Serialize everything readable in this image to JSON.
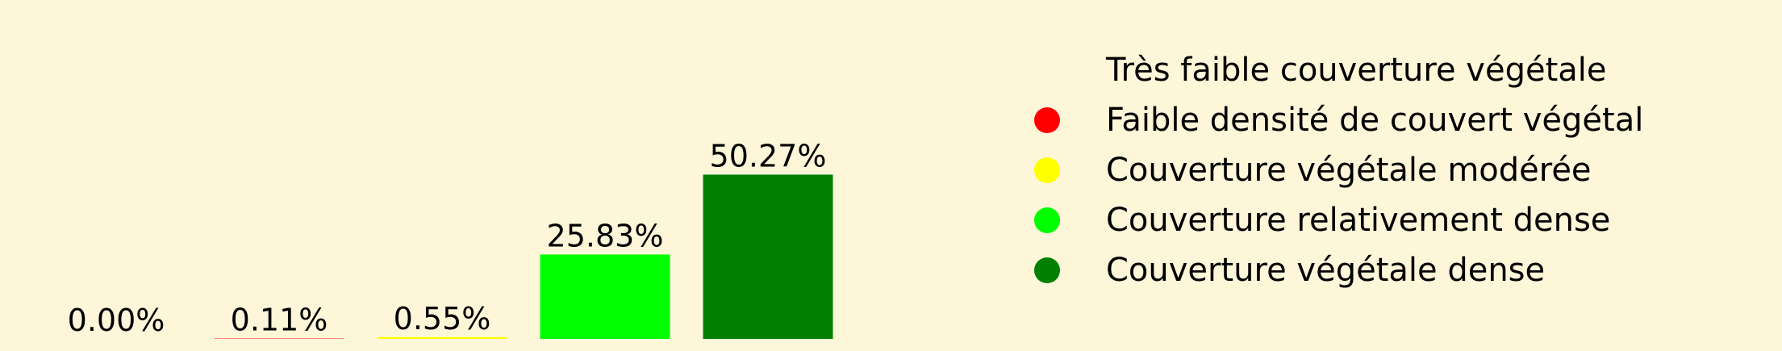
{
  "chart_data": {
    "type": "bar",
    "categories": [
      "Très faible couverture végétale",
      "Faible densité de couvert végétal",
      "Couverture végétale modérée",
      "Couverture relativement dense",
      "Couverture végétale dense"
    ],
    "values": [
      0.0,
      0.11,
      0.55,
      25.83,
      50.27
    ],
    "value_labels": [
      "0.00%",
      "0.11%",
      "0.55%",
      "25.83%",
      "50.27%"
    ],
    "colors": [
      "#fdf6d9",
      "#ff0000",
      "#ffff00",
      "#00ff00",
      "#008000"
    ],
    "title": "",
    "xlabel": "",
    "ylabel": "",
    "ylim": [
      0,
      55
    ],
    "grid": false,
    "legend_position": "right"
  },
  "legend": {
    "items": [
      {
        "label": "Très faible couverture végétale",
        "color": "#fdf6d9"
      },
      {
        "label": "Faible densité de couvert végétal",
        "color": "#ff0000"
      },
      {
        "label": "Couverture végétale modérée",
        "color": "#ffff00"
      },
      {
        "label": "Couverture relativement dense",
        "color": "#00ff00"
      },
      {
        "label": "Couverture végétale dense",
        "color": "#008000"
      }
    ]
  }
}
